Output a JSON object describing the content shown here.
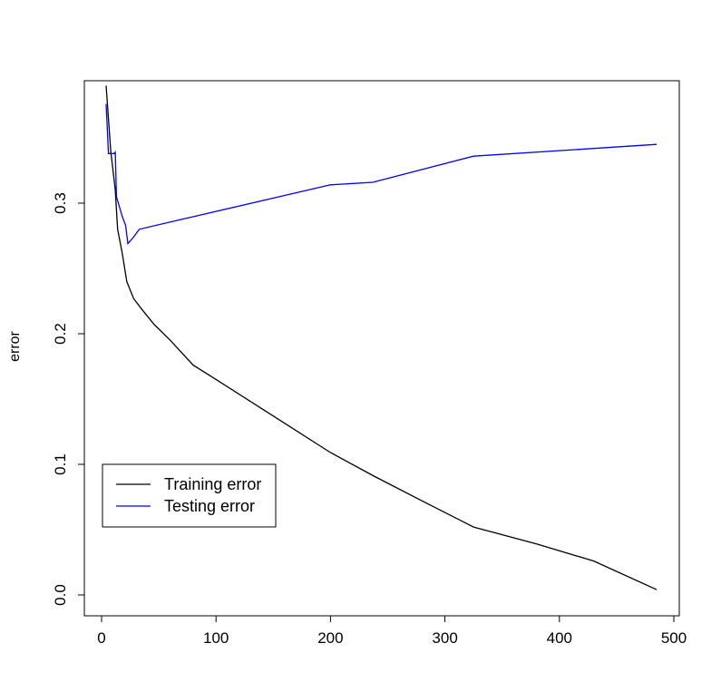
{
  "chart_data": {
    "type": "line",
    "title": "",
    "xlabel": "",
    "ylabel": "error",
    "xlim": [
      0,
      500
    ],
    "ylim": [
      0.0,
      0.39
    ],
    "x_ticks": [
      0,
      100,
      200,
      300,
      400,
      500
    ],
    "y_ticks": [
      0.0,
      0.1,
      0.2,
      0.3
    ],
    "x_tick_labels": [
      "0",
      "100",
      "200",
      "300",
      "400",
      "500"
    ],
    "y_tick_labels": [
      "0.0",
      "0.1",
      "0.2",
      "0.3"
    ],
    "grid": false,
    "legend": {
      "position": "bottom-left",
      "entries": [
        "Training error",
        "Testing error"
      ]
    },
    "series": [
      {
        "name": "Training error",
        "color": "#000000",
        "points": [
          [
            4,
            0.39
          ],
          [
            8,
            0.34
          ],
          [
            12,
            0.31
          ],
          [
            14,
            0.28
          ],
          [
            18,
            0.262
          ],
          [
            22,
            0.24
          ],
          [
            28,
            0.227
          ],
          [
            34,
            0.22
          ],
          [
            46,
            0.207
          ],
          [
            60,
            0.195
          ],
          [
            80,
            0.176
          ],
          [
            100,
            0.165
          ],
          [
            150,
            0.137
          ],
          [
            200,
            0.109
          ],
          [
            238,
            0.091
          ],
          [
            280,
            0.072
          ],
          [
            325,
            0.052
          ],
          [
            380,
            0.039
          ],
          [
            430,
            0.026
          ],
          [
            485,
            0.004
          ]
        ]
      },
      {
        "name": "Testing error",
        "color": "#0000ff",
        "points": [
          [
            4,
            0.376
          ],
          [
            6,
            0.338
          ],
          [
            8,
            0.338
          ],
          [
            11,
            0.338
          ],
          [
            12,
            0.339
          ],
          [
            13,
            0.305
          ],
          [
            18,
            0.29
          ],
          [
            21,
            0.283
          ],
          [
            23,
            0.269
          ],
          [
            28,
            0.274
          ],
          [
            33,
            0.28
          ],
          [
            72,
            0.288
          ],
          [
            82,
            0.29
          ],
          [
            200,
            0.314
          ],
          [
            237,
            0.316
          ],
          [
            325,
            0.336
          ],
          [
            485,
            0.345
          ]
        ]
      }
    ]
  }
}
